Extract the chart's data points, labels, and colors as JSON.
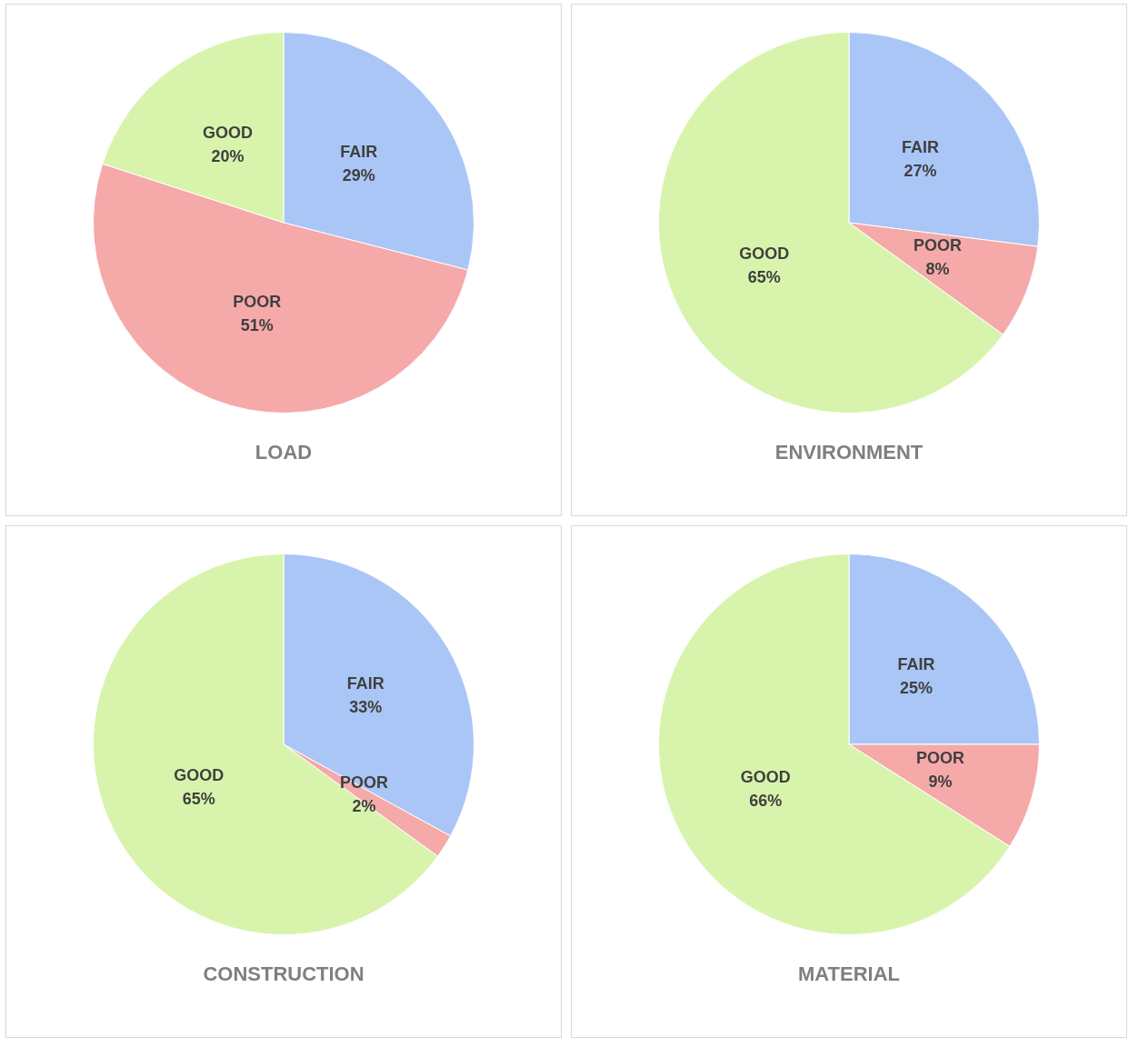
{
  "chart_data": [
    {
      "type": "pie",
      "title": "LOAD",
      "categories": [
        "FAIR",
        "POOR",
        "GOOD"
      ],
      "values": [
        29,
        51,
        20
      ],
      "value_labels": [
        "29%",
        "51%",
        "20%"
      ],
      "colors": [
        "#aac6f6",
        "#f6a9a9",
        "#d8f4ac"
      ],
      "legend": false
    },
    {
      "type": "pie",
      "title": "ENVIRONMENT",
      "categories": [
        "FAIR",
        "POOR",
        "GOOD"
      ],
      "values": [
        27,
        8,
        65
      ],
      "value_labels": [
        "27%",
        "8%",
        "65%"
      ],
      "colors": [
        "#aac6f6",
        "#f6a9a9",
        "#d8f4ac"
      ],
      "legend": false
    },
    {
      "type": "pie",
      "title": "CONSTRUCTION",
      "categories": [
        "FAIR",
        "POOR",
        "GOOD"
      ],
      "values": [
        33,
        2,
        65
      ],
      "value_labels": [
        "33%",
        "2%",
        "65%"
      ],
      "colors": [
        "#aac6f6",
        "#f6a9a9",
        "#d8f4ac"
      ],
      "legend": false
    },
    {
      "type": "pie",
      "title": "MATERIAL",
      "categories": [
        "FAIR",
        "POOR",
        "GOOD"
      ],
      "values": [
        25,
        9,
        66
      ],
      "value_labels": [
        "25%",
        "9%",
        "66%"
      ],
      "colors": [
        "#aac6f6",
        "#f6a9a9",
        "#d8f4ac"
      ],
      "legend": false
    }
  ]
}
